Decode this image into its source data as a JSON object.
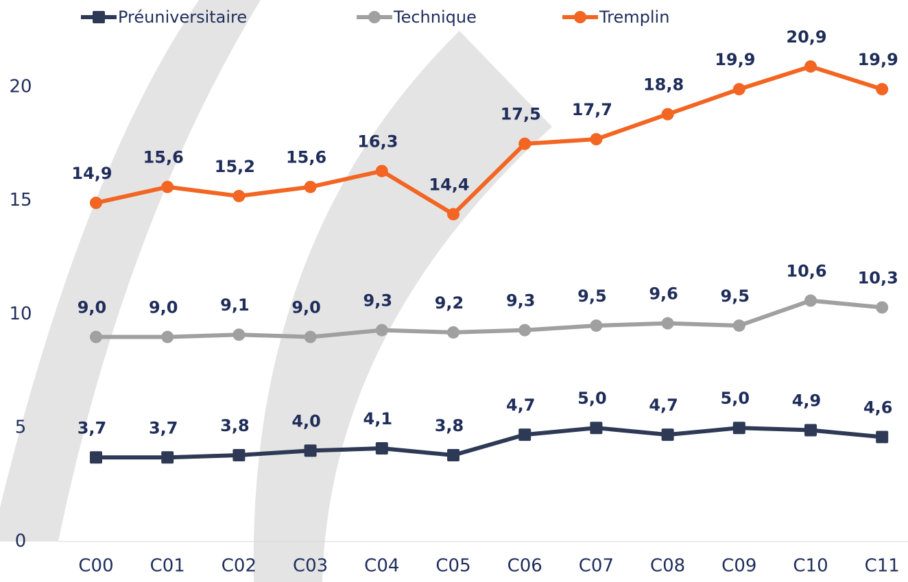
{
  "chart_data": {
    "type": "line",
    "categories": [
      "C00",
      "C01",
      "C02",
      "C03",
      "C04",
      "C05",
      "C06",
      "C07",
      "C08",
      "C09",
      "C10",
      "C11"
    ],
    "series": [
      {
        "name": "Préuniversitaire",
        "color": "#2e3a55",
        "marker": "square",
        "values": [
          3.7,
          3.7,
          3.8,
          4.0,
          4.1,
          3.8,
          4.7,
          5.0,
          4.7,
          5.0,
          4.9,
          4.6
        ],
        "value_labels": [
          "3,7",
          "3,7",
          "3,8",
          "4,0",
          "4,1",
          "3,8",
          "4,7",
          "5,0",
          "4,7",
          "5,0",
          "4,9",
          "4,6"
        ]
      },
      {
        "name": "Technique",
        "color": "#a0a0a0",
        "marker": "circle",
        "values": [
          9.0,
          9.0,
          9.1,
          9.0,
          9.3,
          9.2,
          9.3,
          9.5,
          9.6,
          9.5,
          10.6,
          10.3
        ],
        "value_labels": [
          "9,0",
          "9,0",
          "9,1",
          "9,0",
          "9,3",
          "9,2",
          "9,3",
          "9,5",
          "9,6",
          "9,5",
          "10,6",
          "10,3"
        ]
      },
      {
        "name": "Tremplin",
        "color": "#f26522",
        "marker": "circle",
        "values": [
          14.9,
          15.6,
          15.2,
          15.6,
          16.3,
          14.4,
          17.5,
          17.7,
          18.8,
          19.9,
          20.9,
          19.9
        ],
        "value_labels": [
          "14,9",
          "15,6",
          "15,2",
          "15,6",
          "16,3",
          "14,4",
          "17,5",
          "17,7",
          "18,8",
          "19,9",
          "20,9",
          "19,9"
        ]
      }
    ],
    "ylim": [
      0,
      25
    ],
    "yticks": [
      0,
      5,
      10,
      15,
      20
    ],
    "legend": "top"
  }
}
